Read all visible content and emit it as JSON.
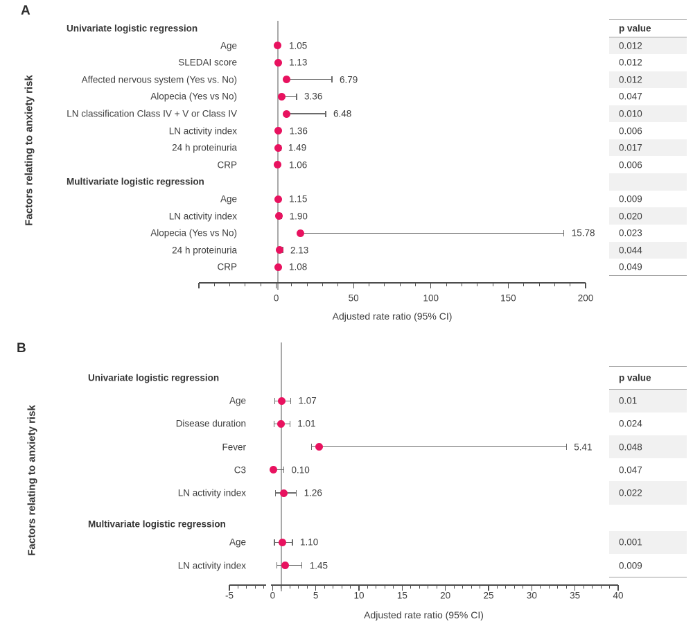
{
  "colors": {
    "dot": "#e8125f",
    "ci_line": "#6b6b6b",
    "axis_line": "#4d4d4d",
    "ref_line": "#a9a9a9",
    "text": "#3d3d3d",
    "row_shade": "#f1f1f1",
    "table_border": "#9e9e9e"
  },
  "chart_data": [
    {
      "type": "forest",
      "panel_label": "A",
      "ylabel": "Factors relating to anxiety risk",
      "xlabel": "Adjusted rate ratio (95% CI)",
      "p_header": "p value",
      "axis": {
        "min": -50,
        "max": 200,
        "reference_value": 1,
        "minor_step": 10,
        "segments": [
          [
            -50,
            200
          ]
        ],
        "major_ticks": [
          {
            "v": -50,
            "label": ""
          },
          {
            "v": 0,
            "label": "0"
          },
          {
            "v": 50,
            "label": "50"
          },
          {
            "v": 100,
            "label": "100"
          },
          {
            "v": 150,
            "label": "150"
          },
          {
            "v": 200,
            "label": "200"
          }
        ]
      },
      "rows": [
        {
          "kind": "section",
          "row": 0,
          "label": "Univariate logistic regression"
        },
        {
          "kind": "item",
          "row": 1,
          "label": "Age",
          "value": 1.05,
          "value_label": "1.05",
          "ci_lo": null,
          "ci_hi": null,
          "caps": "none",
          "p": "0.012"
        },
        {
          "kind": "item",
          "row": 2,
          "label": "SLEDAI score",
          "value": 1.13,
          "value_label": "1.13",
          "ci_lo": null,
          "ci_hi": null,
          "caps": "none",
          "p": "0.012"
        },
        {
          "kind": "item",
          "row": 3,
          "label": "Affected nervous system (Yes vs. No)",
          "value": 6.79,
          "value_label": "6.79",
          "ci_lo": null,
          "ci_hi": 36,
          "caps": "right",
          "p": "0.012"
        },
        {
          "kind": "item",
          "row": 4,
          "label": "Alopecia (Yes vs No)",
          "value": 3.36,
          "value_label": "3.36",
          "ci_lo": null,
          "ci_hi": 13.2,
          "caps": "right",
          "p": "0.047"
        },
        {
          "kind": "item",
          "row": 5,
          "label": "LN classification Class IV + V or Class IV",
          "value": 6.48,
          "value_label": "6.48",
          "ci_lo": null,
          "ci_hi": 32,
          "caps": "right",
          "p": "0.010"
        },
        {
          "kind": "item",
          "row": 6,
          "label": "LN activity index",
          "value": 1.36,
          "value_label": "1.36",
          "ci_lo": null,
          "ci_hi": null,
          "caps": "none",
          "p": "0.006"
        },
        {
          "kind": "item",
          "row": 7,
          "label": "24 h proteinuria",
          "value": 1.49,
          "value_label": "1.49",
          "ci_lo": null,
          "ci_hi": 2.8,
          "caps": "right",
          "p": "0.017"
        },
        {
          "kind": "item",
          "row": 8,
          "label": "CRP",
          "value": 1.06,
          "value_label": "1.06",
          "ci_lo": null,
          "ci_hi": null,
          "caps": "none",
          "p": "0.006"
        },
        {
          "kind": "section",
          "row": 9,
          "label": "Multivariate logistic regression"
        },
        {
          "kind": "item",
          "row": 10,
          "label": "Age",
          "value": 1.15,
          "value_label": "1.15",
          "ci_lo": null,
          "ci_hi": null,
          "caps": "none",
          "p": "0.009"
        },
        {
          "kind": "item",
          "row": 11,
          "label": "LN activity index",
          "value": 1.9,
          "value_label": "1.90",
          "ci_lo": null,
          "ci_hi": 3.6,
          "caps": "right",
          "p": "0.020"
        },
        {
          "kind": "item",
          "row": 12,
          "label": "Alopecia (Yes vs No)",
          "value": 15.78,
          "value_label": "15.78",
          "ci_lo": null,
          "ci_hi": 186,
          "caps": "right",
          "p": "0.023"
        },
        {
          "kind": "item",
          "row": 13,
          "label": "24 h proteinuria",
          "value": 2.13,
          "value_label": "2.13",
          "ci_lo": null,
          "ci_hi": 4.2,
          "caps": "right",
          "p": "0.044"
        },
        {
          "kind": "item",
          "row": 14,
          "label": "CRP",
          "value": 1.08,
          "value_label": "1.08",
          "ci_lo": null,
          "ci_hi": null,
          "caps": "none",
          "p": "0.049"
        }
      ]
    },
    {
      "type": "forest",
      "panel_label": "B",
      "ylabel": "Factors relating to anxiety risk",
      "xlabel": "Adjusted rate ratio (95% CI)",
      "p_header": "p value",
      "axis": {
        "min": -5,
        "max": 40,
        "reference_value": 1,
        "minor_step": 1,
        "segments": [
          [
            -5,
            -0.72
          ],
          [
            -0.15,
            40
          ]
        ],
        "major_ticks": [
          {
            "v": -5,
            "label": "-5"
          },
          {
            "v": 0,
            "label": "0"
          },
          {
            "v": 5,
            "label": "5"
          },
          {
            "v": 10,
            "label": "10"
          },
          {
            "v": 15,
            "label": "15"
          },
          {
            "v": 20,
            "label": "20"
          },
          {
            "v": 25,
            "label": "25"
          },
          {
            "v": 30,
            "label": "30"
          },
          {
            "v": 35,
            "label": "35"
          },
          {
            "v": 40,
            "label": "40"
          }
        ]
      },
      "rows": [
        {
          "kind": "section",
          "row": 0,
          "label": "Univariate logistic regression"
        },
        {
          "kind": "item",
          "row": 1,
          "label": "Age",
          "value": 1.07,
          "value_label": "1.07",
          "ci_lo": 0.25,
          "ci_hi": 2.1,
          "caps": "both",
          "p": "0.01"
        },
        {
          "kind": "item",
          "row": 2,
          "label": "Disease duration",
          "value": 1.01,
          "value_label": "1.01",
          "ci_lo": 0.15,
          "ci_hi": 2.0,
          "caps": "both",
          "p": "0.024"
        },
        {
          "kind": "item",
          "row": 3,
          "label": "Fever",
          "value": 5.41,
          "value_label": "5.41",
          "ci_lo": 4.5,
          "ci_hi": 34,
          "caps": "both",
          "p": "0.048"
        },
        {
          "kind": "item",
          "row": 4,
          "label": "C3",
          "value": 0.1,
          "value_label": "0.10",
          "ci_lo": null,
          "ci_hi": 1.3,
          "caps": "right",
          "p": "0.047"
        },
        {
          "kind": "item",
          "row": 5,
          "label": "LN activity index",
          "value": 1.26,
          "value_label": "1.26",
          "ci_lo": 0.35,
          "ci_hi": 2.75,
          "caps": "both",
          "p": "0.022"
        },
        {
          "kind": "section",
          "row": 6.35,
          "label": "Multivariate logistic regression"
        },
        {
          "kind": "item",
          "row": 7.15,
          "label": "Age",
          "value": 1.1,
          "value_label": "1.10",
          "ci_lo": 0.2,
          "ci_hi": 2.3,
          "caps": "both",
          "p": "0.001"
        },
        {
          "kind": "item",
          "row": 8.15,
          "label": "LN activity index",
          "value": 1.45,
          "value_label": "1.45",
          "ci_lo": 0.5,
          "ci_hi": 3.4,
          "caps": "both",
          "p": "0.009"
        }
      ]
    }
  ]
}
